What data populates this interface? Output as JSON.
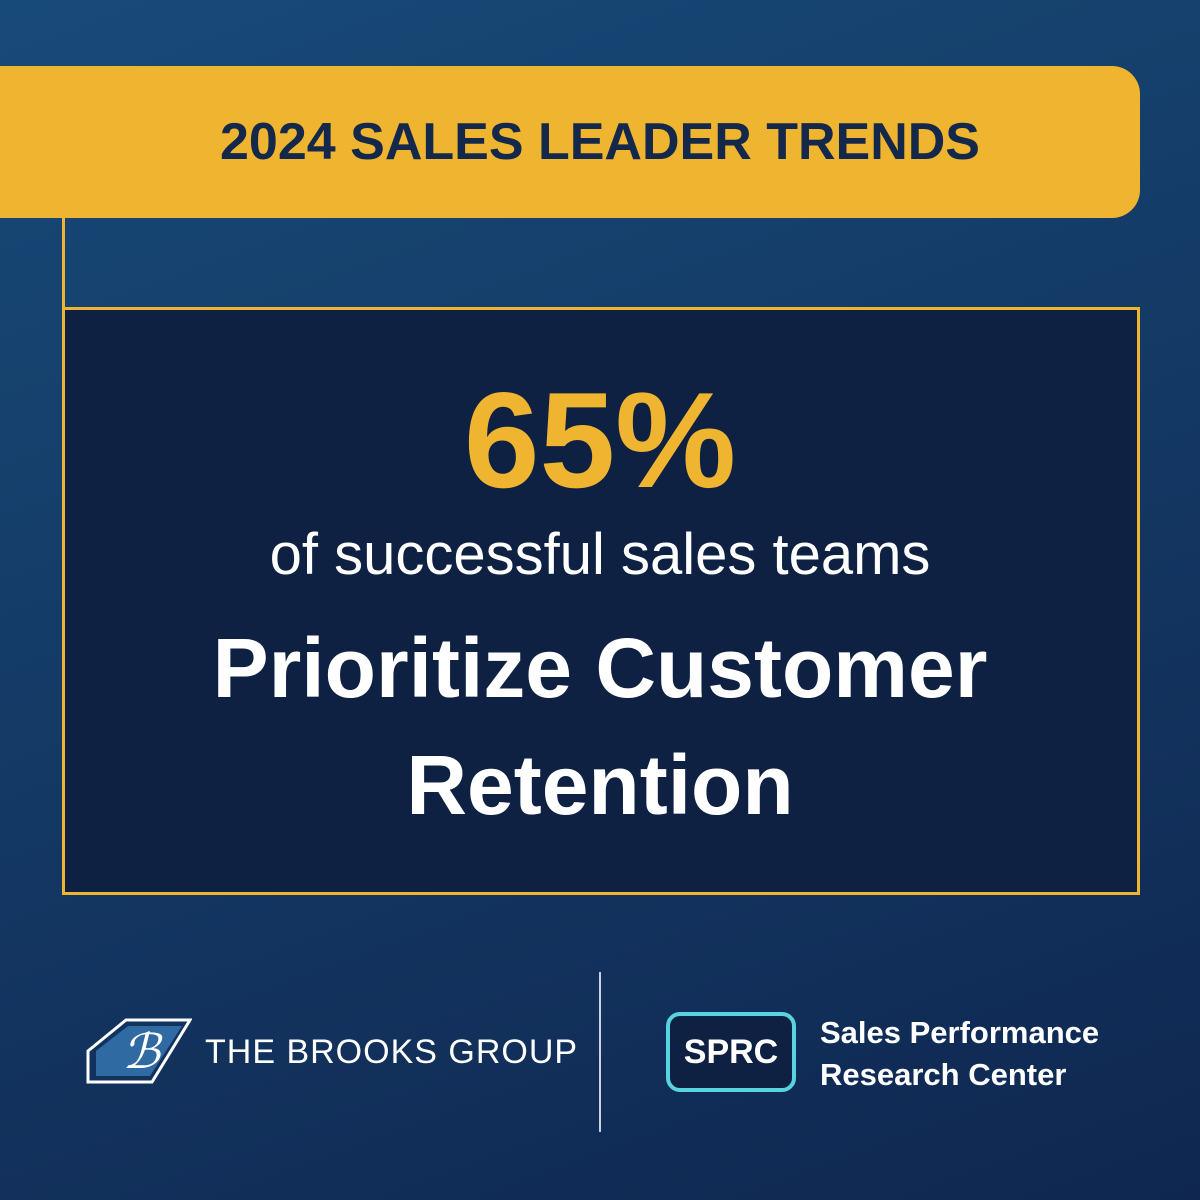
{
  "header": {
    "title": "2024 SALES LEADER TRENDS"
  },
  "stat": {
    "value": "65%",
    "caption": "of successful sales teams",
    "headline": [
      "Prioritize Customer",
      "Retention"
    ]
  },
  "footer": {
    "brooks": "THE BROOKS GROUP",
    "sprc_badge": "SPRC",
    "sprc_name": [
      "Sales Performance",
      "Research Center"
    ]
  }
}
